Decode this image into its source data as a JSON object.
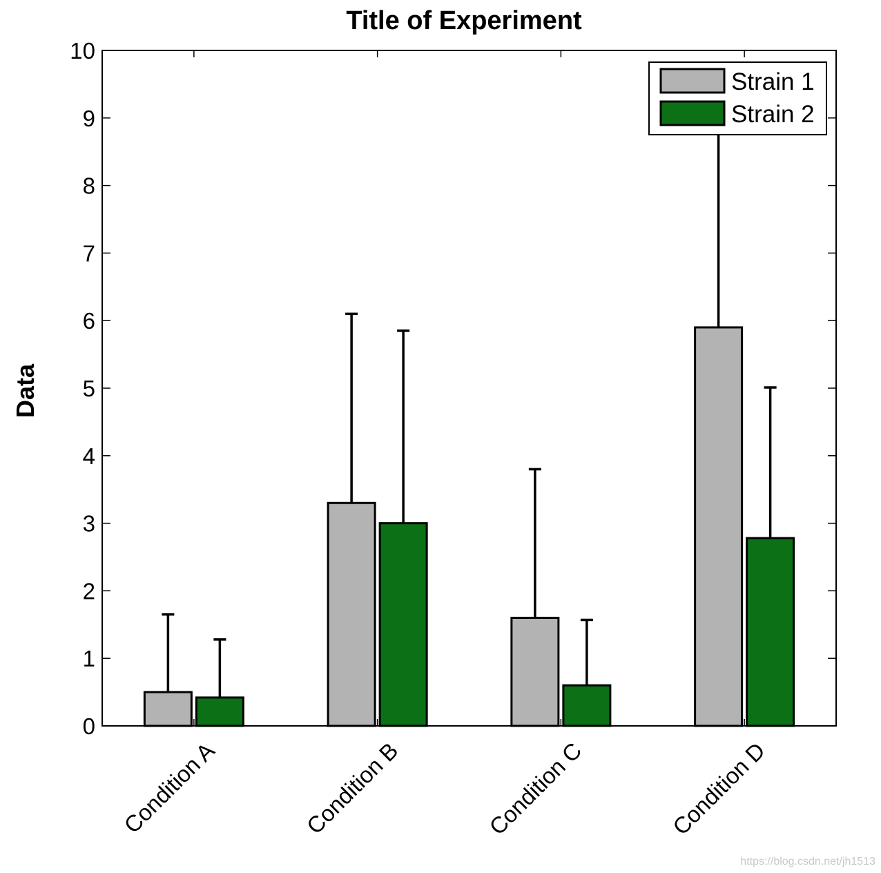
{
  "chart_data": {
    "type": "bar",
    "title": "Title of Experiment",
    "xlabel": "",
    "ylabel": "Data",
    "ylim": [
      0,
      10
    ],
    "yticks": [
      0,
      1,
      2,
      3,
      4,
      5,
      6,
      7,
      8,
      9,
      10
    ],
    "categories": [
      "Condition A",
      "Condition B",
      "Condition C",
      "Condition D"
    ],
    "legend_position": "top-right",
    "grid": false,
    "series": [
      {
        "name": "Strain 1",
        "color": "#b3b3b3",
        "values": [
          0.5,
          3.3,
          1.6,
          5.9
        ],
        "error": [
          1.15,
          2.8,
          2.2,
          3.0
        ]
      },
      {
        "name": "Strain 2",
        "color": "#0b7016",
        "values": [
          0.42,
          3.0,
          0.6,
          2.78
        ],
        "error": [
          0.86,
          2.85,
          0.97,
          2.23
        ]
      }
    ]
  },
  "watermark": "https://blog.csdn.net/jh1513"
}
